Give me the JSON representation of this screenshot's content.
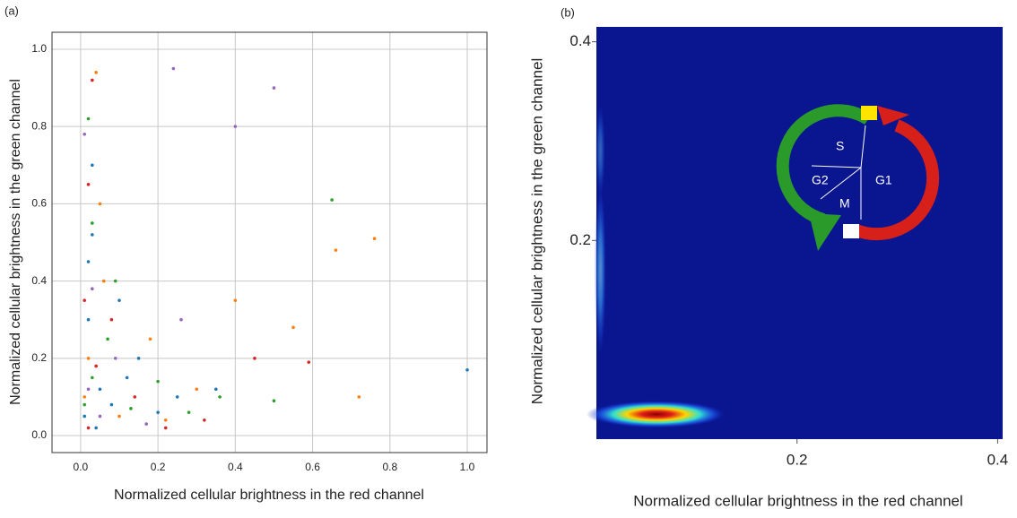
{
  "chart_data": [
    {
      "type": "scatter",
      "panel_label": "(a)",
      "x_label": "Normalized cellular brightness in the red channel",
      "y_label": "Normalized cellular brightness in the green channel",
      "xlim": [
        -0.074,
        1.051
      ],
      "ylim": [
        -0.044,
        1.044
      ],
      "xticks": [
        {
          "value": 0,
          "label": "0.0"
        },
        0.2,
        0.4,
        0.6,
        0.8,
        {
          "value": 1,
          "label": "1.0"
        }
      ],
      "yticks": [
        {
          "value": 0,
          "label": "0.0"
        },
        0.2,
        0.4,
        0.6,
        0.8,
        {
          "value": 1,
          "label": "1.0"
        }
      ],
      "grid": true,
      "series": [
        {
          "color": "#1f77b4",
          "x": [
            0.01,
            0.02,
            0.03,
            0.05,
            0.08,
            0.12,
            0.15,
            0.2,
            0.03,
            0.02,
            0.25,
            0.1,
            0.04,
            0.35,
            1.0
          ],
          "y": [
            0.05,
            0.3,
            0.52,
            0.12,
            0.08,
            0.15,
            0.2,
            0.06,
            0.7,
            0.45,
            0.1,
            0.35,
            0.02,
            0.12,
            0.17
          ]
        },
        {
          "color": "#ff7f0e",
          "x": [
            0.02,
            0.04,
            0.06,
            0.1,
            0.18,
            0.3,
            0.4,
            0.55,
            0.66,
            0.76,
            0.72,
            0.05,
            0.01,
            0.22
          ],
          "y": [
            0.2,
            0.94,
            0.4,
            0.05,
            0.25,
            0.12,
            0.35,
            0.28,
            0.48,
            0.51,
            0.1,
            0.6,
            0.1,
            0.04
          ]
        },
        {
          "color": "#2ca02c",
          "x": [
            0.01,
            0.03,
            0.07,
            0.13,
            0.2,
            0.28,
            0.36,
            0.5,
            0.03,
            0.02,
            0.09,
            0.65
          ],
          "y": [
            0.08,
            0.15,
            0.25,
            0.07,
            0.14,
            0.06,
            0.1,
            0.09,
            0.55,
            0.82,
            0.4,
            0.61
          ]
        },
        {
          "color": "#d62728",
          "x": [
            0.01,
            0.02,
            0.04,
            0.08,
            0.14,
            0.22,
            0.32,
            0.45,
            0.03,
            0.59,
            0.02
          ],
          "y": [
            0.35,
            0.02,
            0.18,
            0.3,
            0.1,
            0.02,
            0.04,
            0.2,
            0.92,
            0.19,
            0.65
          ]
        },
        {
          "color": "#9467bd",
          "x": [
            0.02,
            0.05,
            0.09,
            0.17,
            0.26,
            0.03,
            0.01,
            0.5,
            0.24,
            0.4
          ],
          "y": [
            0.12,
            0.05,
            0.2,
            0.03,
            0.3,
            0.38,
            0.78,
            0.9,
            0.95,
            0.8
          ]
        }
      ]
    },
    {
      "type": "density",
      "panel_label": "(b)",
      "x_label": "Normalized cellular brightness in the red channel",
      "y_label": "Normalized cellular brightness in the green channel",
      "xlim": [
        0,
        0.405
      ],
      "ylim": [
        0,
        0.415
      ],
      "xticks": [
        0.2,
        0.4
      ],
      "yticks": [
        0.2,
        0.4
      ],
      "background": "#0a1590",
      "x": [
        0.06,
        0.004,
        0.004
      ],
      "y": [
        0.025,
        0.17,
        0.29
      ],
      "x_spread": [
        0.07,
        0.006,
        0.005
      ],
      "y_spread": [
        0.014,
        0.09,
        0.05
      ],
      "values": [
        1,
        0.55,
        0.35
      ],
      "annotations": [
        "S",
        "G2",
        "M",
        "G1"
      ]
    }
  ]
}
